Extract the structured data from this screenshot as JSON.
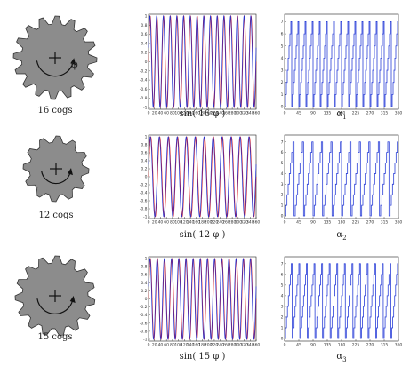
{
  "rows": [
    {
      "gear": {
        "cogs": 16,
        "label": "16 cogs",
        "rotation_symbol": "φ"
      },
      "sine_plot": {
        "caption": "sin( 16 φ )",
        "x_ticks": [
          "0",
          "20",
          "40",
          "60",
          "80",
          "100",
          "120",
          "140",
          "160",
          "180",
          "200",
          "220",
          "240",
          "260",
          "280",
          "300",
          "320",
          "340",
          "360"
        ],
        "y_ticks": [
          "1",
          "0.8",
          "0.6",
          "0.4",
          "0.2",
          "0",
          "-0.2",
          "-0.4",
          "-0.6",
          "-0.8",
          "-1"
        ]
      },
      "alpha_plot": {
        "caption": "α",
        "subscript": "1",
        "x_ticks": [
          "0",
          "45",
          "90",
          "135",
          "180",
          "225",
          "270",
          "315",
          "360"
        ],
        "y_ticks": [
          "7",
          "6",
          "5",
          "4",
          "3",
          "2",
          "1",
          "0"
        ]
      }
    },
    {
      "gear": {
        "cogs": 12,
        "label": "12 cogs",
        "rotation_symbol": ""
      },
      "sine_plot": {
        "caption": "sin( 12 φ )",
        "x_ticks": [
          "0",
          "20",
          "40",
          "60",
          "80",
          "100",
          "120",
          "140",
          "160",
          "180",
          "200",
          "220",
          "240",
          "260",
          "280",
          "300",
          "320",
          "340",
          "360"
        ],
        "y_ticks": [
          "1",
          "0.8",
          "0.6",
          "0.4",
          "0.2",
          "0",
          "-0.2",
          "-0.4",
          "-0.6",
          "-0.8",
          "-1"
        ]
      },
      "alpha_plot": {
        "caption": "α",
        "subscript": "2",
        "x_ticks": [
          "0",
          "45",
          "90",
          "135",
          "180",
          "225",
          "270",
          "315",
          "360"
        ],
        "y_ticks": [
          "7",
          "6",
          "5",
          "4",
          "3",
          "2",
          "1",
          "0"
        ]
      }
    },
    {
      "gear": {
        "cogs": 15,
        "label": "15 cogs",
        "rotation_symbol": ""
      },
      "sine_plot": {
        "caption": "sin( 15 φ )",
        "x_ticks": [
          "0",
          "20",
          "40",
          "60",
          "80",
          "100",
          "120",
          "140",
          "160",
          "180",
          "200",
          "220",
          "240",
          "260",
          "280",
          "300",
          "320",
          "340",
          "360"
        ],
        "y_ticks": [
          "1",
          "0.8",
          "0.6",
          "0.4",
          "0.2",
          "0",
          "-0.2",
          "-0.4",
          "-0.6",
          "-0.8",
          "-1"
        ]
      },
      "alpha_plot": {
        "caption": "α",
        "subscript": "3",
        "x_ticks": [
          "0",
          "45",
          "90",
          "135",
          "180",
          "225",
          "270",
          "315",
          "360"
        ],
        "y_ticks": [
          "7",
          "6",
          "5",
          "4",
          "3",
          "2",
          "1",
          "0"
        ]
      }
    }
  ],
  "colors": {
    "gear_fill": "#8c8c8c",
    "gear_stroke": "#333333",
    "sine_red": "#e02020",
    "sine_blue": "#2030d0",
    "alpha_line": "#2a3fd8"
  }
}
